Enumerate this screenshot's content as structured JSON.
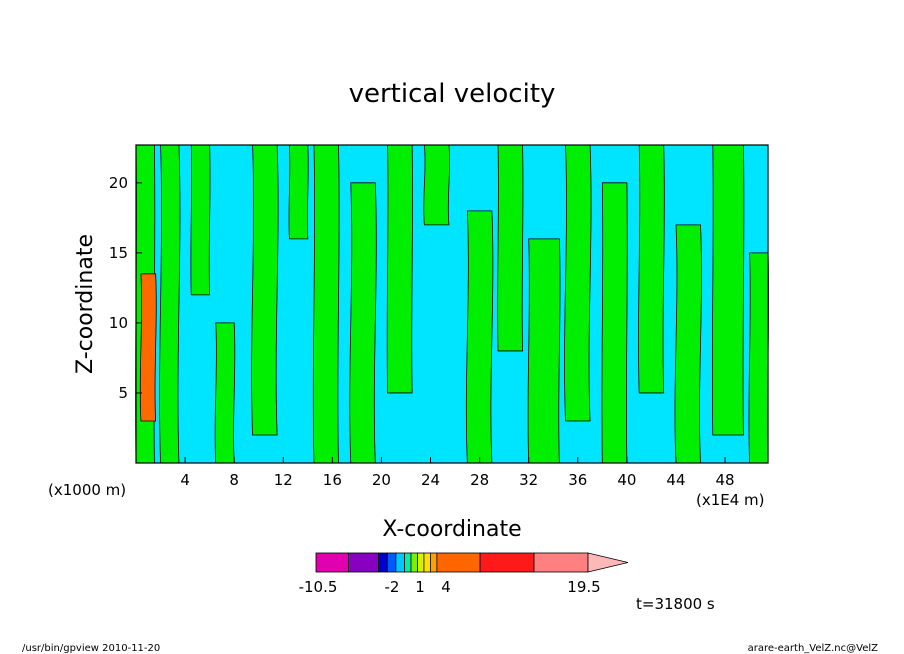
{
  "chart_data": {
    "type": "heatmap",
    "title": "vertical velocity",
    "xlabel": "X-coordinate",
    "ylabel": "Z-coordinate",
    "x_unit_left": "(x1000 m)",
    "x_unit_right": "(x1E4 m)",
    "xlim": [
      0,
      51.5
    ],
    "ylim": [
      0,
      22.7
    ],
    "x_ticks": [
      4,
      8,
      12,
      16,
      20,
      24,
      28,
      32,
      36,
      40,
      44,
      48
    ],
    "y_ticks": [
      5,
      10,
      15,
      20
    ],
    "colorbar": {
      "levels": [
        -10.5,
        -2,
        1,
        4,
        19.5
      ],
      "tick_labels": [
        "-10.5",
        "-2",
        "1",
        "4",
        "19.5"
      ],
      "colors": [
        "#e000b0",
        "#8800c0",
        "#0000d0",
        "#0058ff",
        "#00c8ff",
        "#00f0a0",
        "#78f000",
        "#d8f000",
        "#ffe000",
        "#ffa000",
        "#ff6600",
        "#ff1a1a",
        "#ff8080",
        "#ffb8b8"
      ],
      "triangle_end": "right"
    },
    "fill_colors": {
      "background": "#00e5ff",
      "positive": "#00ee00",
      "strong_positive": "#ff6a00",
      "strong_negative": "#1a1aff"
    },
    "bands": [
      {
        "x0": 0.0,
        "x1": 1.5,
        "z0": 0,
        "z1": 22.7,
        "level": "positive"
      },
      {
        "x0": 0.4,
        "x1": 1.6,
        "z0": 3,
        "z1": 13.5,
        "level": "strong_positive"
      },
      {
        "x0": 2.0,
        "x1": 3.5,
        "z0": 0,
        "z1": 22.7,
        "level": "positive"
      },
      {
        "x0": 4.5,
        "x1": 6.0,
        "z0": 12,
        "z1": 22.7,
        "level": "positive"
      },
      {
        "x0": 6.5,
        "x1": 8.0,
        "z0": 0,
        "z1": 10,
        "level": "positive"
      },
      {
        "x0": 9.5,
        "x1": 11.5,
        "z0": 2,
        "z1": 22.7,
        "level": "positive"
      },
      {
        "x0": 12.5,
        "x1": 14.0,
        "z0": 16,
        "z1": 22.7,
        "level": "positive"
      },
      {
        "x0": 14.5,
        "x1": 16.5,
        "z0": 0,
        "z1": 22.7,
        "level": "positive"
      },
      {
        "x0": 17.5,
        "x1": 19.5,
        "z0": 0,
        "z1": 20,
        "level": "positive"
      },
      {
        "x0": 20.5,
        "x1": 22.5,
        "z0": 5,
        "z1": 22.7,
        "level": "positive"
      },
      {
        "x0": 23.5,
        "x1": 25.5,
        "z0": 17,
        "z1": 22.7,
        "level": "positive"
      },
      {
        "x0": 27.0,
        "x1": 29.0,
        "z0": 0,
        "z1": 18,
        "level": "positive"
      },
      {
        "x0": 29.5,
        "x1": 31.5,
        "z0": 8,
        "z1": 22.7,
        "level": "positive"
      },
      {
        "x0": 32.0,
        "x1": 34.5,
        "z0": 0,
        "z1": 16,
        "level": "positive"
      },
      {
        "x0": 35.0,
        "x1": 37.0,
        "z0": 3,
        "z1": 22.7,
        "level": "positive"
      },
      {
        "x0": 38.0,
        "x1": 40.0,
        "z0": 0,
        "z1": 20,
        "level": "positive"
      },
      {
        "x0": 41.0,
        "x1": 43.0,
        "z0": 5,
        "z1": 22.7,
        "level": "positive"
      },
      {
        "x0": 44.0,
        "x1": 46.0,
        "z0": 0,
        "z1": 17,
        "level": "positive"
      },
      {
        "x0": 47.0,
        "x1": 49.5,
        "z0": 2,
        "z1": 22.7,
        "level": "positive"
      },
      {
        "x0": 50.0,
        "x1": 51.5,
        "z0": 0,
        "z1": 15,
        "level": "positive"
      }
    ],
    "annotation_time": "t=31800 s"
  },
  "footer": {
    "left": "/usr/bin/gpview  2010-11-20",
    "right": "arare-earth_VelZ.nc@VelZ"
  }
}
